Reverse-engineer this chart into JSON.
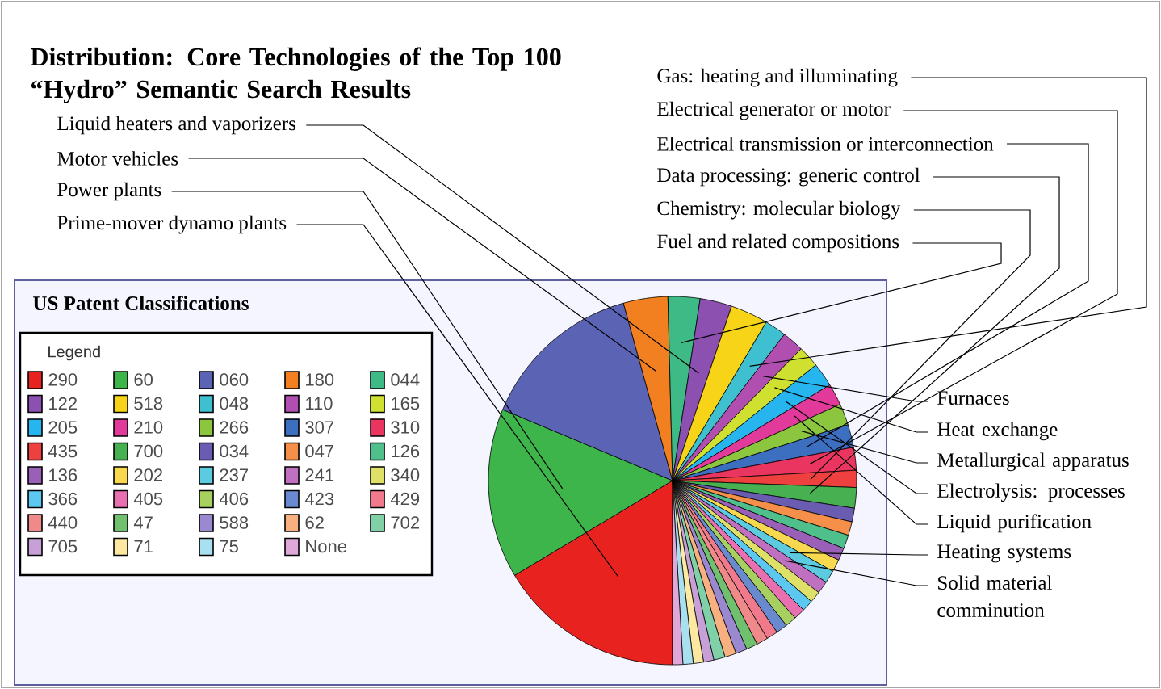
{
  "chart_data": {
    "type": "pie",
    "title": "Distribution: Core Technologies of the Top 100 “Hydro” Semantic Search Results",
    "subtitle": "US Patent Classifications",
    "legend_title": "Legend",
    "legend": "left",
    "categories": [
      "290",
      "60",
      "060",
      "180",
      "044",
      "122",
      "518",
      "048",
      "110",
      "165",
      "205",
      "210",
      "266",
      "307",
      "310",
      "435",
      "700",
      "034",
      "047",
      "126",
      "136",
      "202",
      "237",
      "241",
      "340",
      "366",
      "405",
      "406",
      "423",
      "429",
      "440",
      "47",
      "588",
      "62",
      "702",
      "705",
      "71",
      "75",
      "None"
    ],
    "values": [
      16.4,
      14.9,
      14.4,
      3.9,
      2.8,
      2.8,
      3.3,
      1.9,
      1.9,
      1.9,
      2.1,
      1.9,
      1.9,
      2.0,
      2.0,
      1.5,
      1.8,
      1.2,
      1.2,
      1.2,
      1.1,
      1.1,
      1.1,
      1.1,
      1.0,
      1.0,
      1.0,
      1.0,
      1.0,
      1.0,
      1.0,
      1.0,
      1.0,
      1.0,
      1.0,
      0.9,
      0.9,
      0.9,
      0.9
    ],
    "colors": [
      "#e8231f",
      "#3db54a",
      "#5b63b5",
      "#f28021",
      "#3dba86",
      "#8c50b0",
      "#f7d417",
      "#3fc0d0",
      "#b04fb0",
      "#cfe030",
      "#27b5ef",
      "#e23a9a",
      "#8cc63f",
      "#3c6fc0",
      "#ea3560",
      "#ef4040",
      "#47b050",
      "#6a5cb0",
      "#f58f4a",
      "#4fbf8c",
      "#9a60b8",
      "#f8d84e",
      "#5ccbe0",
      "#c070c0",
      "#dfe068",
      "#5cc8f0",
      "#e870b0",
      "#a8d060",
      "#6a8ad0",
      "#f07a8c",
      "#f08a8a",
      "#70c070",
      "#9a88d0",
      "#f8b080",
      "#80d0a8",
      "#c8a0d8",
      "#fce8a0",
      "#a8e0f0",
      "#e0a8d8"
    ],
    "annotations": [
      {
        "text": "Liquid heaters and vaporizers",
        "x": "122"
      },
      {
        "text": "Motor vehicles",
        "x": "180"
      },
      {
        "text": "Power plants",
        "x": "60"
      },
      {
        "text": "Prime-mover dynamo plants",
        "x": "290"
      },
      {
        "text": "Gas: heating and illuminating",
        "x": "048"
      },
      {
        "text": "Electrical generator or motor",
        "x": "310"
      },
      {
        "text": "Electrical transmission or interconnection",
        "x": "307"
      },
      {
        "text": "Data processing: generic control",
        "x": "700"
      },
      {
        "text": "Chemistry: molecular biology",
        "x": "435"
      },
      {
        "text": "Fuel and related compositions",
        "x": "044"
      },
      {
        "text": "Furnaces",
        "x": "110"
      },
      {
        "text": "Heat exchange",
        "x": "165"
      },
      {
        "text": "Metallurgical apparatus",
        "x": "266"
      },
      {
        "text": "Electrolysis: processes",
        "x": "205"
      },
      {
        "text": "Liquid purification",
        "x": "210"
      },
      {
        "text": "Heating systems",
        "x": "237"
      },
      {
        "text": "Solid material comminution",
        "x": "241"
      }
    ]
  }
}
